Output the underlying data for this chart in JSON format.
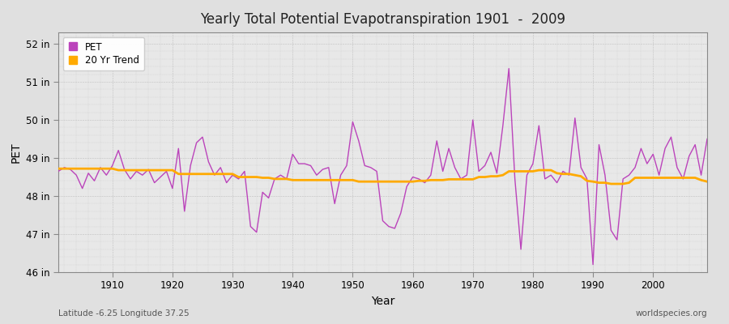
{
  "title": "Yearly Total Potential Evapotranspiration 1901  -  2009",
  "xlabel": "Year",
  "ylabel": "PET",
  "subtitle_lat": "Latitude -6.25 Longitude 37.25",
  "watermark": "worldspecies.org",
  "pet_color": "#bb44bb",
  "trend_color": "#ffaa00",
  "bg_color": "#e0e0e0",
  "plot_bg_color": "#e8e8e8",
  "ylim": [
    46,
    52.3
  ],
  "ytick_labels": [
    "46 in",
    "47 in",
    "48 in",
    "49 in",
    "50 in",
    "51 in",
    "52 in"
  ],
  "ytick_values": [
    46,
    47,
    48,
    49,
    50,
    51,
    52
  ],
  "years": [
    1901,
    1902,
    1903,
    1904,
    1905,
    1906,
    1907,
    1908,
    1909,
    1910,
    1911,
    1912,
    1913,
    1914,
    1915,
    1916,
    1917,
    1918,
    1919,
    1920,
    1921,
    1922,
    1923,
    1924,
    1925,
    1926,
    1927,
    1928,
    1929,
    1930,
    1931,
    1932,
    1933,
    1934,
    1935,
    1936,
    1937,
    1938,
    1939,
    1940,
    1941,
    1942,
    1943,
    1944,
    1945,
    1946,
    1947,
    1948,
    1949,
    1950,
    1951,
    1952,
    1953,
    1954,
    1955,
    1956,
    1957,
    1958,
    1959,
    1960,
    1961,
    1962,
    1963,
    1964,
    1965,
    1966,
    1967,
    1968,
    1969,
    1970,
    1971,
    1972,
    1973,
    1974,
    1975,
    1976,
    1977,
    1978,
    1979,
    1980,
    1981,
    1982,
    1983,
    1984,
    1985,
    1986,
    1987,
    1988,
    1989,
    1990,
    1991,
    1992,
    1993,
    1994,
    1995,
    1996,
    1997,
    1998,
    1999,
    2000,
    2001,
    2002,
    2003,
    2004,
    2005,
    2006,
    2007,
    2008,
    2009
  ],
  "pet_values": [
    48.65,
    48.75,
    48.7,
    48.55,
    48.2,
    48.6,
    48.4,
    48.75,
    48.55,
    48.8,
    49.2,
    48.7,
    48.45,
    48.65,
    48.55,
    48.7,
    48.35,
    48.5,
    48.65,
    48.2,
    49.25,
    47.6,
    48.8,
    49.4,
    49.55,
    48.9,
    48.55,
    48.75,
    48.35,
    48.55,
    48.45,
    48.65,
    47.2,
    47.05,
    48.1,
    47.95,
    48.45,
    48.55,
    48.45,
    49.1,
    48.85,
    48.85,
    48.8,
    48.55,
    48.7,
    48.75,
    47.8,
    48.55,
    48.8,
    49.95,
    49.45,
    48.8,
    48.75,
    48.65,
    47.35,
    47.2,
    47.15,
    47.55,
    48.25,
    48.5,
    48.45,
    48.35,
    48.55,
    49.45,
    48.65,
    49.25,
    48.75,
    48.45,
    48.55,
    50.0,
    48.65,
    48.8,
    49.15,
    48.6,
    49.85,
    51.35,
    48.45,
    46.6,
    48.55,
    48.85,
    49.85,
    48.45,
    48.55,
    48.35,
    48.65,
    48.55,
    50.05,
    48.75,
    48.45,
    46.2,
    49.35,
    48.55,
    47.1,
    46.85,
    48.45,
    48.55,
    48.75,
    49.25,
    48.85,
    49.1,
    48.55,
    49.25,
    49.55,
    48.75,
    48.45,
    49.05,
    49.35,
    48.55,
    49.5
  ],
  "trend_values": [
    48.72,
    48.72,
    48.72,
    48.72,
    48.72,
    48.72,
    48.72,
    48.72,
    48.72,
    48.72,
    48.68,
    48.68,
    48.68,
    48.68,
    48.68,
    48.68,
    48.68,
    48.68,
    48.68,
    48.68,
    48.58,
    48.58,
    48.58,
    48.58,
    48.58,
    48.58,
    48.58,
    48.58,
    48.58,
    48.58,
    48.5,
    48.5,
    48.5,
    48.5,
    48.48,
    48.48,
    48.45,
    48.45,
    48.45,
    48.42,
    48.42,
    48.42,
    48.42,
    48.42,
    48.42,
    48.42,
    48.42,
    48.42,
    48.42,
    48.42,
    48.38,
    48.38,
    48.38,
    48.38,
    48.38,
    48.38,
    48.38,
    48.38,
    48.38,
    48.38,
    48.4,
    48.4,
    48.42,
    48.42,
    48.42,
    48.44,
    48.44,
    48.44,
    48.44,
    48.44,
    48.5,
    48.5,
    48.52,
    48.52,
    48.55,
    48.65,
    48.65,
    48.65,
    48.65,
    48.65,
    48.68,
    48.68,
    48.68,
    48.6,
    48.58,
    48.58,
    48.55,
    48.52,
    48.4,
    48.38,
    48.35,
    48.35,
    48.32,
    48.32,
    48.32,
    48.35,
    48.48,
    48.48,
    48.48,
    48.48,
    48.48,
    48.48,
    48.48,
    48.48,
    48.48,
    48.48,
    48.48,
    48.42,
    48.38
  ]
}
